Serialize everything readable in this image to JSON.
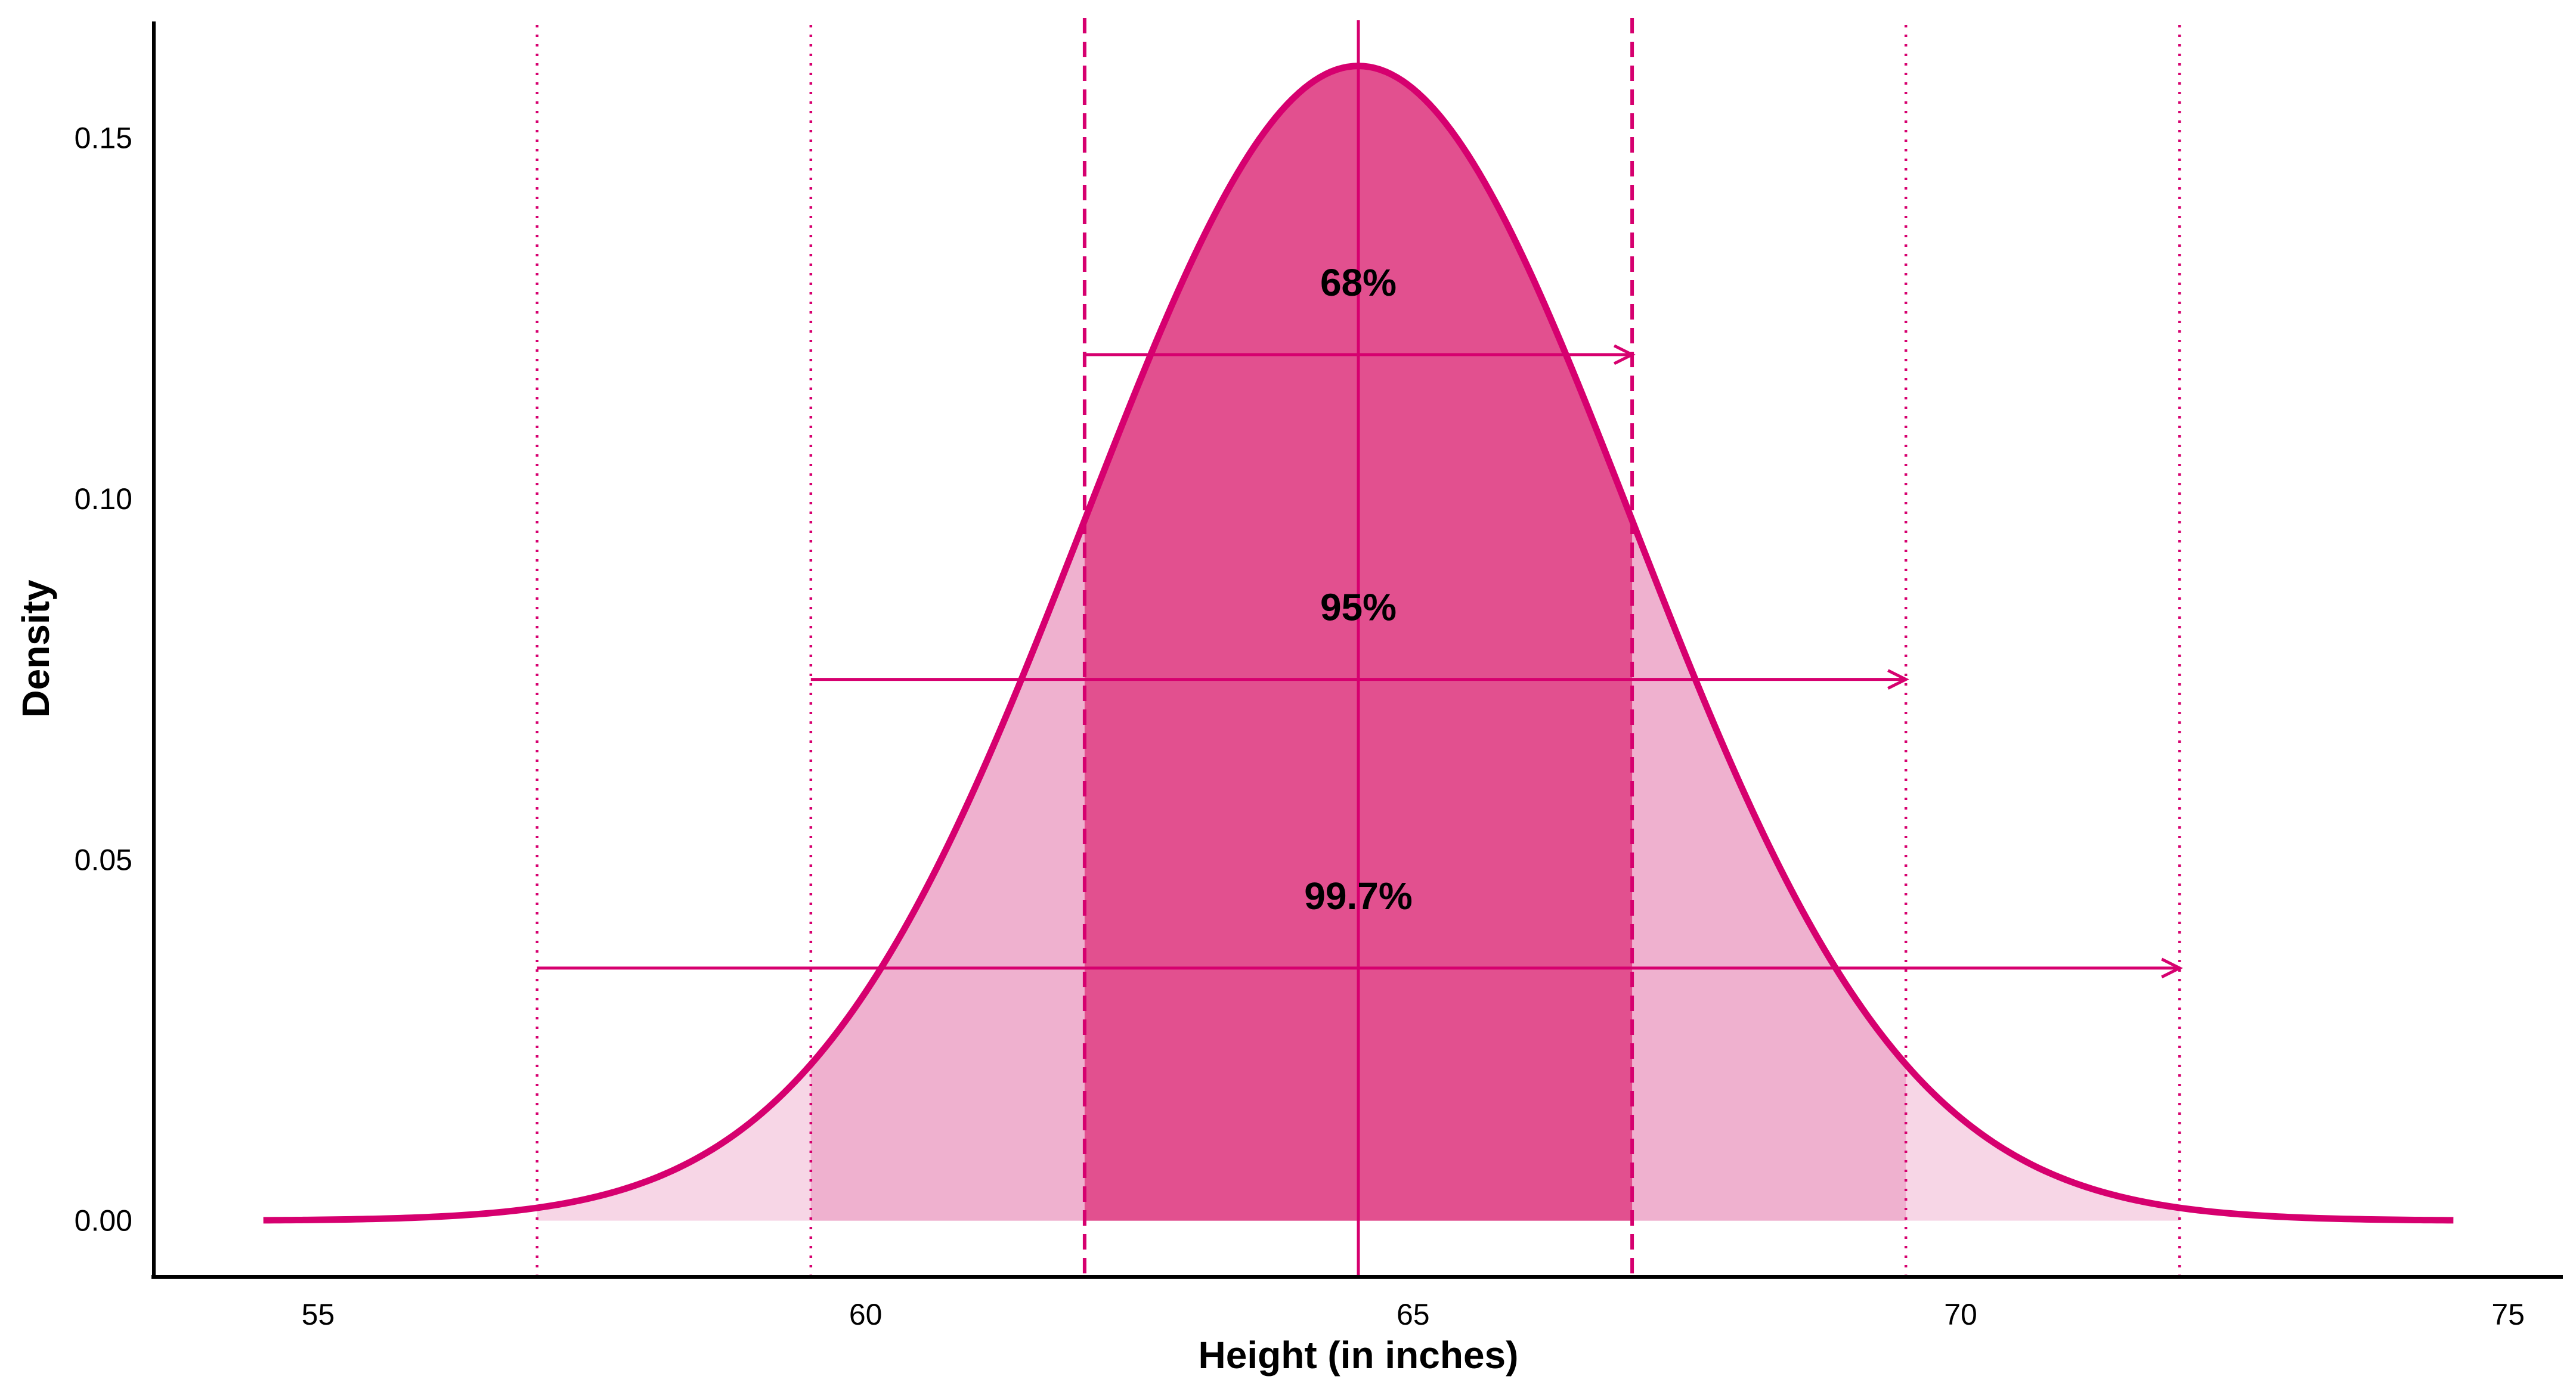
{
  "chart_data": {
    "type": "area",
    "title": "",
    "xlabel": "Height (in inches)",
    "ylabel": "Density",
    "xlim": [
      53.5,
      75.5
    ],
    "ylim": [
      -0.0078,
      0.166
    ],
    "x_ticks": [
      55,
      60,
      65,
      70,
      75
    ],
    "x_tick_labels": [
      "55",
      "60",
      "65",
      "70",
      "75"
    ],
    "y_ticks": [
      0.0,
      0.05,
      0.1,
      0.15
    ],
    "y_tick_labels": [
      "0.00",
      "0.05",
      "0.10",
      "0.15"
    ],
    "grid": false,
    "legend": "none",
    "distribution": {
      "kind": "normal",
      "mean": 64.5,
      "sd": 2.5,
      "x_range": [
        54.5,
        74.5
      ],
      "peak_density": 0.16
    },
    "bands": [
      {
        "label": "68%",
        "from": 62.0,
        "to": 67.0,
        "sd_multiple": 1,
        "label_y": 0.13,
        "arrow_y": 0.12
      },
      {
        "label": "95%",
        "from": 59.5,
        "to": 69.5,
        "sd_multiple": 2,
        "label_y": 0.085,
        "arrow_y": 0.075
      },
      {
        "label": "99.7%",
        "from": 57.0,
        "to": 72.0,
        "sd_multiple": 3,
        "label_y": 0.045,
        "arrow_y": 0.035
      }
    ],
    "reference_lines": [
      {
        "x": 64.5,
        "style": "solid"
      },
      {
        "x": 62.0,
        "style": "dashed"
      },
      {
        "x": 67.0,
        "style": "dashed"
      },
      {
        "x": 59.5,
        "style": "dotted"
      },
      {
        "x": 69.5,
        "style": "dotted"
      },
      {
        "x": 57.0,
        "style": "dotted"
      },
      {
        "x": 72.0,
        "style": "dotted"
      }
    ],
    "colors": {
      "curve": "#d6006f",
      "band_1sd": "#e2508f",
      "band_2sd": "#efb1cf",
      "band_3sd": "#f7d6e6",
      "axis": "#000000",
      "text": "#000000"
    }
  }
}
